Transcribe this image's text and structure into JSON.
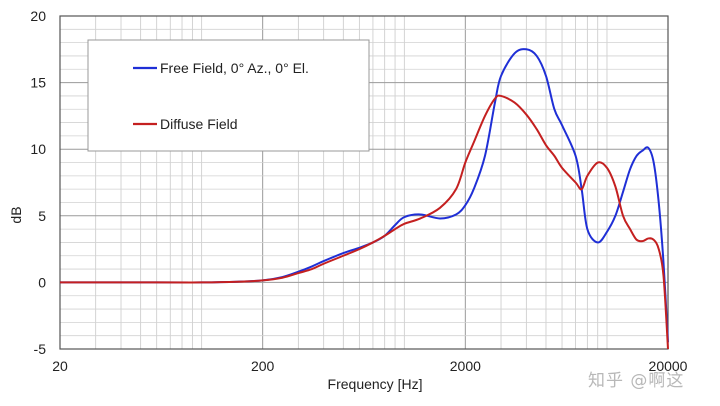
{
  "chart_data": {
    "type": "line",
    "title": "",
    "xlabel": "Frequency [Hz]",
    "ylabel": "dB",
    "xscale": "log",
    "xlim": [
      20,
      20000
    ],
    "ylim": [
      -5,
      20
    ],
    "x_ticks": [
      20,
      200,
      2000,
      20000
    ],
    "x_tick_labels": [
      "20",
      "200",
      "2000",
      "20000"
    ],
    "y_ticks": [
      -5,
      0,
      5,
      10,
      15,
      20
    ],
    "y_tick_labels": [
      "-5",
      "0",
      "5",
      "10",
      "15",
      "20"
    ],
    "grid": true,
    "legend_position": "top-left",
    "series": [
      {
        "name": "Free Field, 0° Az., 0° El.",
        "color": "#1f2fd6",
        "x": [
          20,
          60,
          100,
          150,
          200,
          250,
          300,
          350,
          400,
          500,
          600,
          700,
          800,
          900,
          1000,
          1200,
          1500,
          1800,
          2000,
          2200,
          2500,
          2800,
          3000,
          3500,
          4000,
          4500,
          5000,
          5500,
          6000,
          7000,
          7500,
          8000,
          9000,
          10000,
          11000,
          12000,
          13000,
          14000,
          15000,
          16000,
          17000,
          18000,
          19000,
          20000
        ],
        "y": [
          0,
          0,
          0,
          0.05,
          0.15,
          0.4,
          0.8,
          1.2,
          1.6,
          2.2,
          2.6,
          3.0,
          3.5,
          4.3,
          4.9,
          5.1,
          4.8,
          5.1,
          5.8,
          7.0,
          9.5,
          13.5,
          15.5,
          17.2,
          17.5,
          17.0,
          15.5,
          13.0,
          11.8,
          9.5,
          7.0,
          4.0,
          3.0,
          3.8,
          5.0,
          6.8,
          8.5,
          9.5,
          9.9,
          10.1,
          9.0,
          6.0,
          1.5,
          -4.5
        ]
      },
      {
        "name": "Diffuse Field",
        "color": "#c42020",
        "x": [
          20,
          60,
          100,
          150,
          200,
          250,
          300,
          350,
          400,
          500,
          600,
          700,
          800,
          900,
          1000,
          1200,
          1500,
          1800,
          2000,
          2200,
          2500,
          2800,
          3000,
          3500,
          4000,
          4500,
          5000,
          5500,
          6000,
          7000,
          7500,
          8000,
          9000,
          10000,
          11000,
          12000,
          13000,
          14000,
          15000,
          16000,
          17000,
          18000,
          19000,
          20000
        ],
        "y": [
          0,
          0,
          0,
          0.05,
          0.15,
          0.35,
          0.7,
          1.0,
          1.4,
          2.0,
          2.5,
          3.0,
          3.5,
          4.0,
          4.4,
          4.8,
          5.6,
          7.0,
          9.0,
          10.5,
          12.5,
          13.8,
          14.0,
          13.5,
          12.6,
          11.5,
          10.3,
          9.5,
          8.6,
          7.5,
          7.0,
          8.0,
          9.0,
          8.6,
          7.2,
          5.0,
          4.0,
          3.2,
          3.1,
          3.3,
          3.2,
          2.5,
          0.5,
          -5.0
        ]
      }
    ]
  },
  "watermark": "知乎 @啊这"
}
